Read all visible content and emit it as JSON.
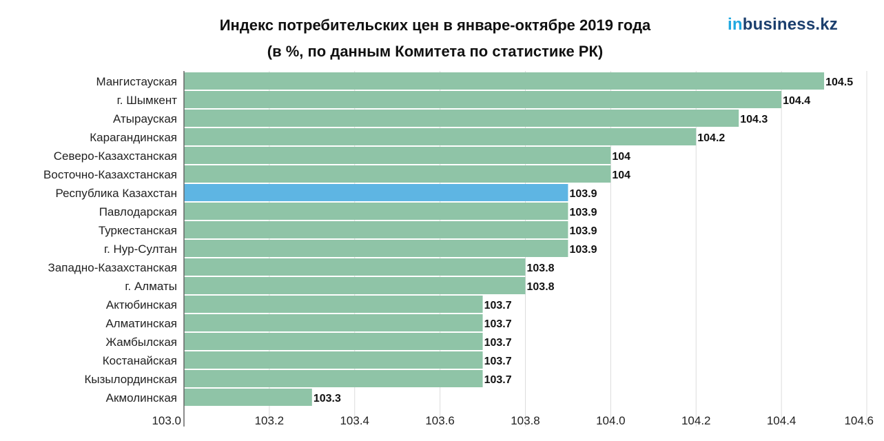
{
  "title_line1": "Индекс потребительских цен в январе-октябре 2019 года",
  "title_line2": "(в %, по данным Комитета по статистике РК)",
  "logo": {
    "prefix": "in",
    "suffix": "business.kz"
  },
  "colors": {
    "bar": "#8fc4a7",
    "highlight": "#5eb5e3",
    "grid": "#dcdcdc",
    "axis": "#666666"
  },
  "chart_data": {
    "type": "bar",
    "orientation": "horizontal",
    "title": "Индекс потребительских цен в январе-октябре 2019 года",
    "subtitle": "(в %, по данным Комитета по статистике РК)",
    "categories": [
      "Мангистауская",
      "г. Шымкент",
      "Атырауская",
      "Карагандинская",
      "Северо-Казахстанская",
      "Восточно-Казахстанская",
      "Республика Казахстан",
      "Павлодарская",
      "Туркестанская",
      "г. Нур-Султан",
      "Западно-Казахстанская",
      "г. Алматы",
      "Актюбинская",
      "Алматинская",
      "Жамбылская",
      "Костанайская",
      "Кызылординская",
      "Акмолинская"
    ],
    "values": [
      104.5,
      104.4,
      104.3,
      104.2,
      104,
      104,
      103.9,
      103.9,
      103.9,
      103.9,
      103.8,
      103.8,
      103.7,
      103.7,
      103.7,
      103.7,
      103.7,
      103.3
    ],
    "value_labels": [
      "104.5",
      "104.4",
      "104.3",
      "104.2",
      "104",
      "104",
      "103.9",
      "103.9",
      "103.9",
      "103.9",
      "103.8",
      "103.8",
      "103.7",
      "103.7",
      "103.7",
      "103.7",
      "103.7",
      "103.3"
    ],
    "highlight": "Республика Казахстан",
    "xlim": [
      103.0,
      104.6
    ],
    "xticks": [
      103.0,
      103.2,
      103.4,
      103.6,
      103.8,
      104.0,
      104.2,
      104.4,
      104.6
    ],
    "xtick_labels": [
      "103.0",
      "103.2",
      "103.4",
      "103.6",
      "103.8",
      "104.0",
      "104.2",
      "104.4",
      "104.6"
    ],
    "grid": true
  }
}
